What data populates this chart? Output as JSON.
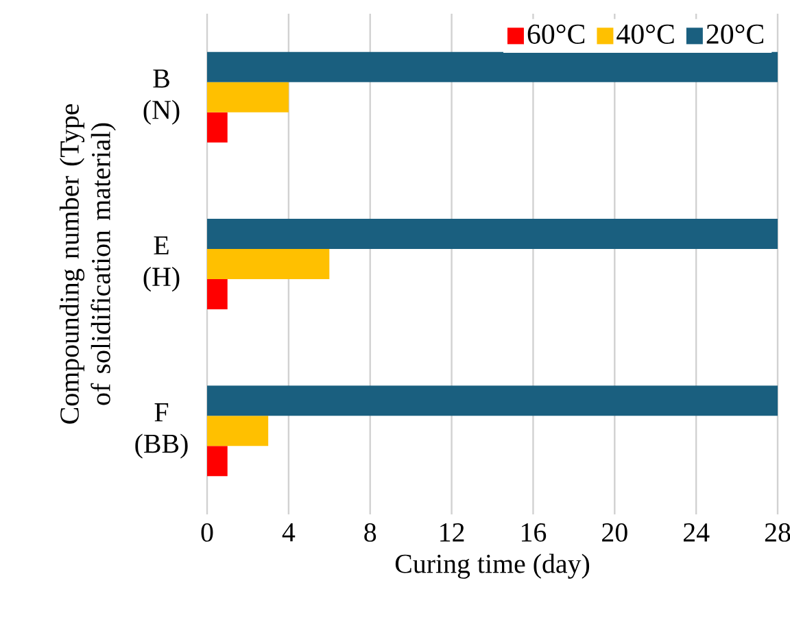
{
  "chart_data": {
    "type": "bar",
    "orientation": "horizontal",
    "xlabel": "Curing time (day)",
    "ylabel": "Compounding number (Type of solidification material)",
    "categories": [
      "B (N)",
      "E (H)",
      "F (BB)"
    ],
    "series": [
      {
        "name": "60°C",
        "color": "#ff0000",
        "values": [
          1,
          1,
          1
        ]
      },
      {
        "name": "40°C",
        "color": "#ffc000",
        "values": [
          4,
          6,
          3
        ]
      },
      {
        "name": "20°C",
        "color": "#1a5f7f",
        "values": [
          28,
          28,
          28
        ]
      }
    ],
    "xlim": [
      0,
      28
    ],
    "xticks": [
      0,
      4,
      8,
      12,
      16,
      20,
      24,
      28
    ],
    "grid": "x",
    "legend": "top right"
  }
}
